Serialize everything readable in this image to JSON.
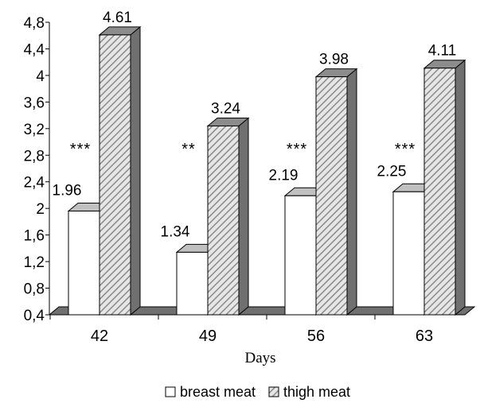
{
  "chart_data": {
    "type": "bar",
    "categories": [
      "42",
      "49",
      "56",
      "63"
    ],
    "series": [
      {
        "name": "breast meat",
        "values": [
          1.96,
          1.34,
          2.19,
          2.25
        ],
        "value_labels": [
          "1.96",
          "1.34",
          "2.19",
          "2.25"
        ],
        "fill": "#ffffff",
        "pattern": "none"
      },
      {
        "name": "thigh meat",
        "values": [
          4.61,
          3.24,
          3.98,
          4.11
        ],
        "value_labels": [
          "4.61",
          "3.24",
          "3.98",
          "4.11"
        ],
        "fill": "#d9d9d9",
        "pattern": "diagonal-hatch"
      }
    ],
    "annotations": [
      "***",
      "**",
      "***",
      "***"
    ],
    "xlabel": "Days",
    "ylabel": "",
    "ylim": [
      0.4,
      4.8
    ],
    "yticks": [
      0.4,
      0.8,
      1.2,
      1.6,
      2,
      2.4,
      2.8,
      3.2,
      3.6,
      4,
      4.4,
      4.8
    ],
    "ytick_labels": [
      "0,4",
      "0,8",
      "1,2",
      "1,6",
      "2",
      "2,4",
      "2,8",
      "3,2",
      "3,6",
      "4",
      "4,4",
      "4,8"
    ],
    "grid": false,
    "legend_position": "bottom-center",
    "style": "3d-column",
    "colors": {
      "axis": "#000000",
      "floor": "#707070",
      "shade": "#707070",
      "breast_top": "#c0c0c0",
      "thigh_top": "#8c8c8c"
    }
  }
}
